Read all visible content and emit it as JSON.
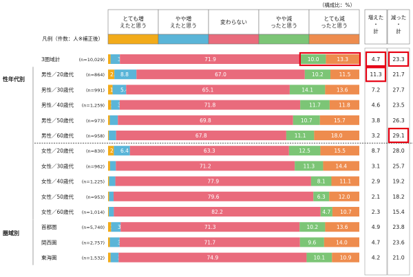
{
  "chart_data": {
    "type": "bar",
    "orientation": "horizontal",
    "stacked": true,
    "unit_note": "（構成比：%）",
    "legend_title": "凡例（件数：人※補正後）",
    "legend": [
      {
        "label": "とても増えたと思う",
        "color": "#f2ab1a"
      },
      {
        "label": "やや増えたと思う",
        "color": "#5ab5d8"
      },
      {
        "label": "変わらない",
        "color": "#e96b7c"
      },
      {
        "label": "やや減ったと思う",
        "color": "#7cc576"
      },
      {
        "label": "とても減ったと思う",
        "color": "#ee8c4e"
      }
    ],
    "summary_headers": [
      "増えた・計",
      "減った・計"
    ],
    "group_labels": [
      "性年代別",
      "圏域別"
    ],
    "rows": [
      {
        "label": "3圏域計",
        "n": "(n=10,029)",
        "values": [
          1.0,
          3.7,
          71.9,
          10.0,
          13.3
        ],
        "inc": "4.7",
        "dec": "23.3",
        "hl_bar": true,
        "hl_inc": true,
        "hl_dec": true
      },
      {
        "label": "男性／20歳代",
        "n": "(n=864)",
        "values": [
          2.5,
          8.8,
          67.0,
          10.2,
          11.5
        ],
        "inc": "11.3",
        "dec": "21.7",
        "hl_bar": false,
        "hl_inc": true,
        "hl_dec": false
      },
      {
        "label": "男性／30歳代",
        "n": "(n=991)",
        "values": [
          1.8,
          5.4,
          65.1,
          14.1,
          13.6
        ],
        "inc": "7.2",
        "dec": "27.7",
        "hl_bar": false,
        "hl_inc": false,
        "hl_dec": false
      },
      {
        "label": "男性／40歳代",
        "n": "(n=1,259)",
        "values": [
          1.2,
          3.4,
          71.8,
          11.7,
          11.8
        ],
        "inc": "4.6",
        "dec": "23.5",
        "hl_bar": false,
        "hl_inc": false,
        "hl_dec": false
      },
      {
        "label": "男性／50歳代",
        "n": "(n=973)",
        "values": [
          0.7,
          3.2,
          69.8,
          10.7,
          15.7
        ],
        "inc": "3.8",
        "dec": "26.3",
        "hl_bar": false,
        "hl_inc": false,
        "hl_dec": false
      },
      {
        "label": "男性／60歳代",
        "n": "(n=958)",
        "values": [
          0.3,
          2.9,
          67.8,
          11.1,
          18.0
        ],
        "inc": "3.2",
        "dec": "29.1",
        "hl_bar": false,
        "hl_inc": false,
        "hl_dec": true
      },
      {
        "label": "女性／20歳代",
        "n": "(n=830)",
        "values": [
          2.3,
          6.4,
          63.3,
          12.5,
          15.5
        ],
        "inc": "8.7",
        "dec": "28.0",
        "hl_bar": false,
        "hl_inc": false,
        "hl_dec": false
      },
      {
        "label": "女性／30歳代",
        "n": "(n=962)",
        "values": [
          0.8,
          2.3,
          71.2,
          11.3,
          14.4
        ],
        "inc": "3.1",
        "dec": "25.7",
        "hl_bar": false,
        "hl_inc": false,
        "hl_dec": false
      },
      {
        "label": "女性／40歳代",
        "n": "(n=1,225)",
        "values": [
          0.4,
          2.5,
          77.9,
          8.1,
          11.1
        ],
        "inc": "2.9",
        "dec": "19.2",
        "hl_bar": false,
        "hl_inc": false,
        "hl_dec": false
      },
      {
        "label": "女性／50歳代",
        "n": "(n=953)",
        "values": [
          0.4,
          1.8,
          79.6,
          6.3,
          12.0
        ],
        "inc": "2.1",
        "dec": "18.2",
        "hl_bar": false,
        "hl_inc": false,
        "hl_dec": false
      },
      {
        "label": "女性／60歳代",
        "n": "(n=1,014)",
        "values": [
          0.3,
          2.0,
          82.2,
          4.7,
          10.7
        ],
        "inc": "2.3",
        "dec": "15.4",
        "hl_bar": false,
        "hl_inc": false,
        "hl_dec": false
      },
      {
        "label": "首都圏",
        "n": "(n=5,740)",
        "values": [
          1.2,
          3.8,
          71.3,
          10.2,
          13.6
        ],
        "inc": "4.9",
        "dec": "23.8",
        "hl_bar": false,
        "hl_inc": false,
        "hl_dec": false
      },
      {
        "label": "関西圏",
        "n": "(n=2,757)",
        "values": [
          0.7,
          3.9,
          71.7,
          9.6,
          14.0
        ],
        "inc": "4.7",
        "dec": "23.6",
        "hl_bar": false,
        "hl_inc": false,
        "hl_dec": false
      },
      {
        "label": "東海圏",
        "n": "(n=1,532)",
        "values": [
          1.0,
          3.2,
          74.9,
          10.1,
          10.9
        ],
        "inc": "4.2",
        "dec": "21.0",
        "hl_bar": false,
        "hl_inc": false,
        "hl_dec": false
      }
    ]
  }
}
